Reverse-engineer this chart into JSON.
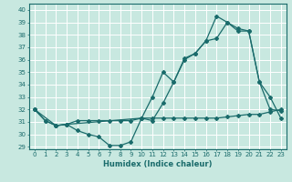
{
  "xlabel": "Humidex (Indice chaleur)",
  "xlim": [
    -0.5,
    23.5
  ],
  "ylim": [
    28.8,
    40.5
  ],
  "yticks": [
    29,
    30,
    31,
    32,
    33,
    34,
    35,
    36,
    37,
    38,
    39,
    40
  ],
  "xticks": [
    0,
    1,
    2,
    3,
    4,
    5,
    6,
    7,
    8,
    9,
    10,
    11,
    12,
    13,
    14,
    15,
    16,
    17,
    18,
    19,
    20,
    21,
    22,
    23
  ],
  "bg_color": "#c8e8e0",
  "line_color": "#1a6b6b",
  "grid_color": "#ffffff",
  "line1_x": [
    0,
    1,
    2,
    3,
    4,
    5,
    6,
    7,
    8,
    9,
    10,
    11,
    12,
    13,
    14,
    15,
    16,
    17,
    18,
    19,
    20,
    21,
    22,
    23
  ],
  "line1_y": [
    32,
    31.1,
    30.7,
    30.8,
    30.3,
    30.0,
    29.8,
    29.1,
    29.1,
    29.4,
    31.3,
    31.1,
    32.5,
    34.2,
    36.0,
    36.5,
    37.5,
    37.7,
    39.0,
    38.3,
    38.3,
    34.2,
    32.0,
    31.9
  ],
  "line2_x": [
    0,
    2,
    3,
    10,
    11,
    12,
    13,
    14,
    15,
    16,
    17,
    18,
    19,
    20,
    21,
    22,
    23
  ],
  "line2_y": [
    32,
    30.7,
    30.8,
    31.3,
    33.0,
    35.0,
    34.2,
    36.1,
    36.5,
    37.5,
    39.5,
    39.0,
    38.5,
    38.3,
    34.2,
    33.0,
    31.3
  ],
  "line3_x": [
    0,
    1,
    2,
    3,
    4,
    5,
    6,
    7,
    8,
    9,
    10,
    11,
    12,
    13,
    14,
    15,
    16,
    17,
    18,
    19,
    20,
    21,
    22,
    23
  ],
  "line3_y": [
    32,
    31.1,
    30.7,
    30.8,
    31.1,
    31.1,
    31.1,
    31.1,
    31.1,
    31.1,
    31.3,
    31.3,
    31.3,
    31.3,
    31.3,
    31.3,
    31.3,
    31.3,
    31.4,
    31.5,
    31.6,
    31.6,
    31.8,
    32.0
  ]
}
